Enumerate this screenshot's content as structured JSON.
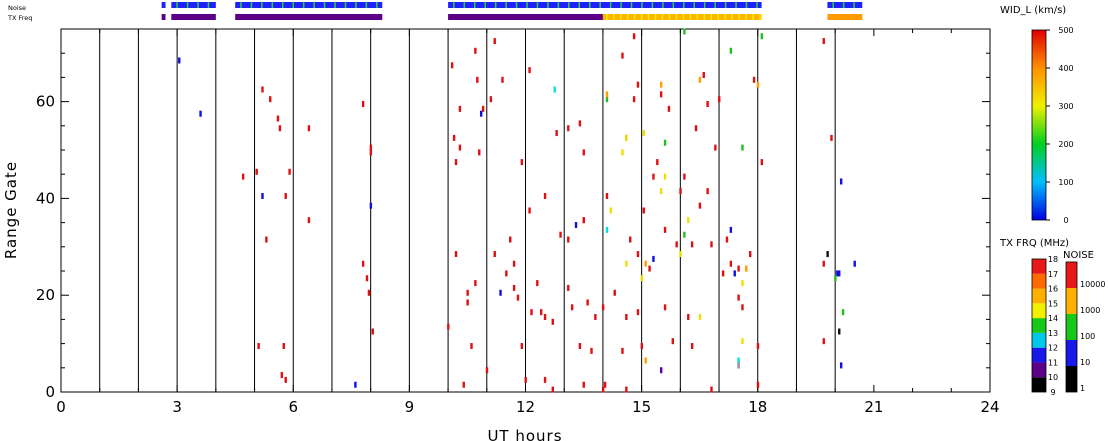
{
  "chart_data": {
    "type": "scatter",
    "xlabel": "UT hours",
    "ylabel": "Range Gate",
    "xlim": [
      0,
      24
    ],
    "ylim": [
      0,
      75
    ],
    "x_ticks": [
      "0",
      "3",
      "6",
      "9",
      "12",
      "15",
      "18",
      "21",
      "24"
    ],
    "y_ticks": [
      "0",
      "20",
      "40",
      "60"
    ],
    "grid_vertical_hours": [
      1,
      2,
      3,
      4,
      5,
      6,
      7,
      8,
      9,
      10,
      11,
      12,
      13,
      14,
      15,
      16,
      17,
      18,
      19,
      20
    ],
    "strips": {
      "noise_label": "Noise",
      "txfreq_label": "TX Freq",
      "noise_segments": [
        {
          "start": 2.6,
          "end": 2.7,
          "color": "#2020ff"
        },
        {
          "start": 2.85,
          "end": 4.0,
          "color": "#2020ff"
        },
        {
          "start": 4.5,
          "end": 8.3,
          "color": "#2020ff"
        },
        {
          "start": 10.0,
          "end": 18.1,
          "color": "#2020ff"
        },
        {
          "start": 19.8,
          "end": 20.7,
          "color": "#2020ff"
        }
      ],
      "txfreq_segments": [
        {
          "start": 2.6,
          "end": 2.7,
          "color": "#5c0088"
        },
        {
          "start": 2.85,
          "end": 4.0,
          "color": "#5c0088"
        },
        {
          "start": 4.5,
          "end": 8.3,
          "color": "#5c0088"
        },
        {
          "start": 10.0,
          "end": 14.0,
          "color": "#5c0088"
        },
        {
          "start": 14.0,
          "end": 18.1,
          "color": "#ffb400"
        },
        {
          "start": 19.8,
          "end": 20.7,
          "color": "#ff9a00"
        }
      ]
    },
    "series": [
      {
        "color": "#e01010",
        "points": [
          [
            5.1,
            9.5
          ],
          [
            5.3,
            31.5
          ],
          [
            5.2,
            62.5
          ],
          [
            5.4,
            60.5
          ],
          [
            5.6,
            56.5
          ],
          [
            5.65,
            54.5
          ],
          [
            5.75,
            9.5
          ],
          [
            5.7,
            3.5
          ],
          [
            5.8,
            2.5
          ],
          [
            5.9,
            45.5
          ],
          [
            4.7,
            44.5
          ],
          [
            5.05,
            45.5
          ],
          [
            5.8,
            40.5
          ],
          [
            6.4,
            35.5
          ],
          [
            6.4,
            54.5
          ],
          [
            7.8,
            59.5
          ],
          [
            7.8,
            26.5
          ],
          [
            7.9,
            23.5
          ],
          [
            7.95,
            20.5
          ],
          [
            8.05,
            12.5
          ],
          [
            8.0,
            50.5
          ],
          [
            8.0,
            49.5
          ],
          [
            10.0,
            13.5
          ],
          [
            10.1,
            67.5
          ],
          [
            10.15,
            52.5
          ],
          [
            10.2,
            47.5
          ],
          [
            10.2,
            28.5
          ],
          [
            10.3,
            50.5
          ],
          [
            10.3,
            58.5
          ],
          [
            10.4,
            1.5
          ],
          [
            10.5,
            18.5
          ],
          [
            10.7,
            70.5
          ],
          [
            10.75,
            64.5
          ],
          [
            10.8,
            49.5
          ],
          [
            10.9,
            58.5
          ],
          [
            10.6,
            9.5
          ],
          [
            10.5,
            20.5
          ],
          [
            10.7,
            22.5
          ],
          [
            11.0,
            4.5
          ],
          [
            11.1,
            60.5
          ],
          [
            11.2,
            72.5
          ],
          [
            11.2,
            28.5
          ],
          [
            11.4,
            64.5
          ],
          [
            11.5,
            24.5
          ],
          [
            11.6,
            31.5
          ],
          [
            11.7,
            26.5
          ],
          [
            11.7,
            21.5
          ],
          [
            11.8,
            19.5
          ],
          [
            11.9,
            47.5
          ],
          [
            11.9,
            9.5
          ],
          [
            12.0,
            2.5
          ],
          [
            12.1,
            66.5
          ],
          [
            12.1,
            37.5
          ],
          [
            12.15,
            16.5
          ],
          [
            12.3,
            22.5
          ],
          [
            12.4,
            16.5
          ],
          [
            12.5,
            40.5
          ],
          [
            12.5,
            15.5
          ],
          [
            12.5,
            2.5
          ],
          [
            12.7,
            0.5
          ],
          [
            12.7,
            14.5
          ],
          [
            12.8,
            53.5
          ],
          [
            12.9,
            32.5
          ],
          [
            13.1,
            54.5
          ],
          [
            13.1,
            31.5
          ],
          [
            13.4,
            55.5
          ],
          [
            13.5,
            49.5
          ],
          [
            13.5,
            1.5
          ],
          [
            13.5,
            35.5
          ],
          [
            13.5,
            35.5
          ],
          [
            13.6,
            18.5
          ],
          [
            13.4,
            9.5
          ],
          [
            13.8,
            15.5
          ],
          [
            13.7,
            8.5
          ],
          [
            13.2,
            17.5
          ],
          [
            13.1,
            21.5
          ],
          [
            14.0,
            17.5
          ],
          [
            14.0,
            0.5
          ],
          [
            14.05,
            1.5
          ],
          [
            14.1,
            40.5
          ],
          [
            14.3,
            20.5
          ],
          [
            14.5,
            69.5
          ],
          [
            14.5,
            8.5
          ],
          [
            14.6,
            15.5
          ],
          [
            14.6,
            0.5
          ],
          [
            14.6,
            52.5
          ],
          [
            14.7,
            31.5
          ],
          [
            14.8,
            73.5
          ],
          [
            14.8,
            60.5
          ],
          [
            14.9,
            63.5
          ],
          [
            14.9,
            28.5
          ],
          [
            14.9,
            16.5
          ],
          [
            15.0,
            9.5
          ],
          [
            15.05,
            37.5
          ],
          [
            15.2,
            25.5
          ],
          [
            15.3,
            44.5
          ],
          [
            15.4,
            47.5
          ],
          [
            15.5,
            61.5
          ],
          [
            15.6,
            17.5
          ],
          [
            15.6,
            33.5
          ],
          [
            15.7,
            58.5
          ],
          [
            15.8,
            10.5
          ],
          [
            15.9,
            30.5
          ],
          [
            16.0,
            41.5
          ],
          [
            16.1,
            44.5
          ],
          [
            16.2,
            15.5
          ],
          [
            16.3,
            9.5
          ],
          [
            16.3,
            30.5
          ],
          [
            16.4,
            54.5
          ],
          [
            16.5,
            38.5
          ],
          [
            16.6,
            65.5
          ],
          [
            16.7,
            59.5
          ],
          [
            16.7,
            41.5
          ],
          [
            16.8,
            0.5
          ],
          [
            16.8,
            30.5
          ],
          [
            16.9,
            50.5
          ],
          [
            17.0,
            60.5
          ],
          [
            17.1,
            24.5
          ],
          [
            17.2,
            31.5
          ],
          [
            17.3,
            26.5
          ],
          [
            17.5,
            19.5
          ],
          [
            17.5,
            25.5
          ],
          [
            17.6,
            17.5
          ],
          [
            17.8,
            28.5
          ],
          [
            17.9,
            64.5
          ],
          [
            18.0,
            9.5
          ],
          [
            18.1,
            47.5
          ],
          [
            18.0,
            1.5
          ],
          [
            19.7,
            26.5
          ],
          [
            19.7,
            10.5
          ],
          [
            19.7,
            72.5
          ],
          [
            19.9,
            52.5
          ]
        ]
      },
      {
        "color": "#1010e0",
        "points": [
          [
            3.05,
            68.5
          ],
          [
            3.6,
            57.5
          ],
          [
            5.2,
            40.5
          ],
          [
            7.6,
            1.5
          ],
          [
            8.0,
            38.5
          ],
          [
            10.85,
            57.5
          ],
          [
            11.35,
            20.5
          ],
          [
            13.3,
            34.5
          ],
          [
            15.3,
            27.5
          ],
          [
            17.3,
            33.5
          ],
          [
            17.4,
            24.5
          ],
          [
            17.5,
            5.5
          ],
          [
            20.05,
            24.5
          ],
          [
            20.1,
            24.5
          ],
          [
            20.15,
            5.5
          ],
          [
            20.15,
            43.5
          ],
          [
            20.5,
            26.5
          ]
        ]
      },
      {
        "color": "#20c020",
        "points": [
          [
            15.6,
            51.5
          ],
          [
            16.1,
            74.5
          ],
          [
            16.1,
            32.5
          ],
          [
            17.3,
            70.5
          ],
          [
            17.6,
            50.5
          ],
          [
            18.1,
            73.5
          ],
          [
            20.0,
            23.5
          ],
          [
            20.2,
            16.5
          ],
          [
            14.1,
            60.5
          ]
        ]
      },
      {
        "color": "#f0e000",
        "points": [
          [
            14.2,
            37.5
          ],
          [
            14.5,
            49.5
          ],
          [
            14.6,
            52.5
          ],
          [
            15.05,
            53.5
          ],
          [
            15.5,
            41.5
          ],
          [
            15.6,
            44.5
          ],
          [
            16.0,
            28.5
          ],
          [
            16.2,
            35.5
          ],
          [
            17.6,
            22.5
          ],
          [
            17.6,
            10.5
          ],
          [
            14.6,
            26.5
          ],
          [
            15.0,
            23.5
          ],
          [
            16.5,
            15.5
          ]
        ]
      },
      {
        "color": "#ffa000",
        "points": [
          [
            14.1,
            61.5
          ],
          [
            15.5,
            63.5
          ],
          [
            15.1,
            26.5
          ],
          [
            16.5,
            64.5
          ],
          [
            17.7,
            25.5
          ],
          [
            18.0,
            63.5
          ],
          [
            15.1,
            6.5
          ],
          [
            17.7,
            25.5
          ]
        ]
      },
      {
        "color": "#00e0e0",
        "points": [
          [
            12.75,
            62.5
          ],
          [
            14.1,
            33.5
          ],
          [
            17.5,
            6.5
          ]
        ]
      },
      {
        "color": "#6000a0",
        "points": [
          [
            15.5,
            4.5
          ]
        ]
      },
      {
        "color": "#101010",
        "points": [
          [
            20.1,
            12.5
          ],
          [
            19.8,
            28.5
          ]
        ]
      },
      {
        "color": "#a0a0a0",
        "points": [
          [
            17.5,
            5.5
          ]
        ]
      }
    ],
    "colorbars": {
      "width": {
        "title": "WID_L (km/s)",
        "ticks": [
          "0",
          "100",
          "200",
          "300",
          "400",
          "500"
        ]
      },
      "txfrq": {
        "title": "TX FRQ (MHz)",
        "ticks": [
          "9",
          "10",
          "11",
          "12",
          "13",
          "14",
          "15",
          "16",
          "17",
          "18"
        ],
        "colors": [
          "#000000",
          "#5c0088",
          "#1818e8",
          "#00c8e8",
          "#18c818",
          "#f0f000",
          "#ffb000",
          "#ff6a00",
          "#e81818"
        ]
      },
      "noise": {
        "title": "NOISE",
        "ticks": [
          "1",
          "10",
          "100",
          "1000",
          "10000"
        ],
        "colors": [
          "#000000",
          "#1818e8",
          "#18c818",
          "#ffb000",
          "#e81818"
        ]
      }
    }
  }
}
